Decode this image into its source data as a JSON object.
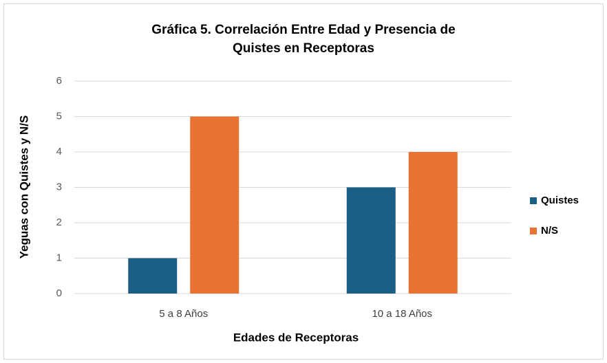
{
  "chart_data": {
    "type": "bar",
    "title": "Gráfica 5. Correlación Entre Edad y Presencia de Quistes en Receptoras",
    "x_label": "Edades de Receptoras",
    "y_label": "Yeguas con Quistes y N/S",
    "categories": [
      "5 a 8 Años",
      "10  a 18 Años"
    ],
    "series": [
      {
        "name": "Quistes",
        "color": "#1b5f84",
        "values": [
          1,
          3
        ]
      },
      {
        "name": "N/S",
        "color": "#e97132",
        "values": [
          5,
          4
        ]
      }
    ],
    "ylim": [
      0,
      6
    ],
    "yticks": [
      0,
      1,
      2,
      3,
      4,
      5,
      6
    ],
    "grid": true,
    "legend": "right"
  }
}
